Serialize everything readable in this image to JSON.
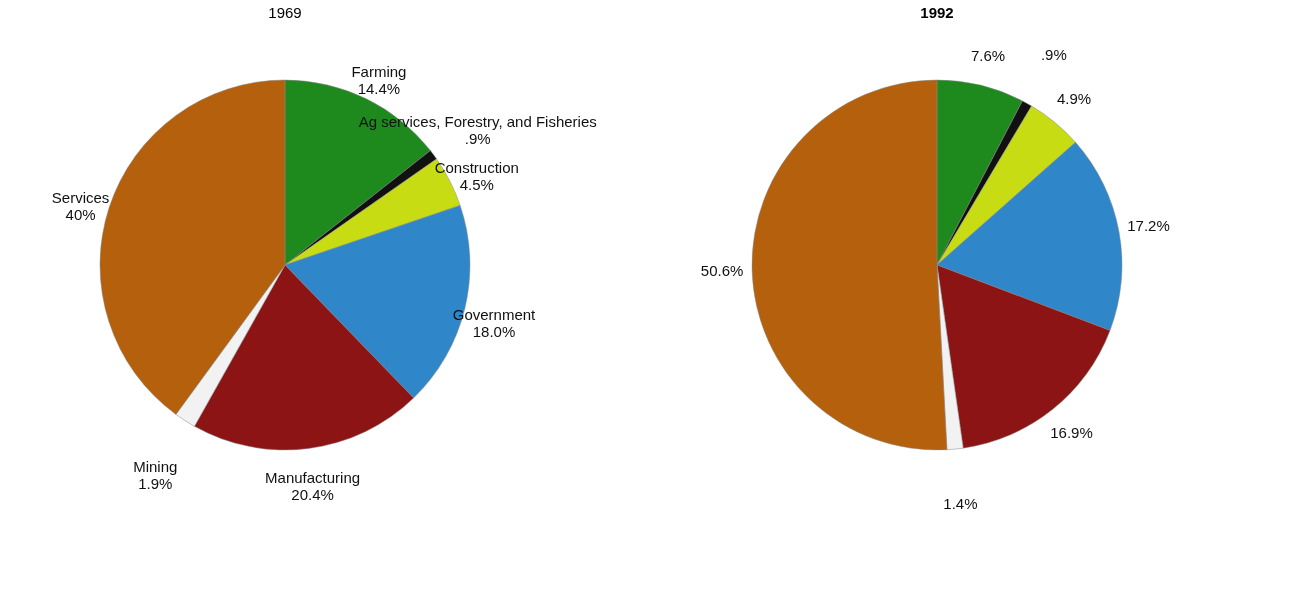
{
  "chart_data": [
    {
      "type": "pie",
      "title": "1969",
      "categories": [
        "Farming",
        "Ag services, Forestry, and Fisheries",
        "Construction",
        "Government",
        "Manufacturing",
        "Mining",
        "Services"
      ],
      "values": [
        14.4,
        0.9,
        4.5,
        18.0,
        20.4,
        1.9,
        40
      ],
      "value_labels": [
        "14.4%",
        ".9%",
        "4.5%",
        "18.0%",
        "20.4%",
        "1.9%",
        "40%"
      ],
      "colors": [
        "#1e8a1e",
        "#111111",
        "#c8dc14",
        "#2f86c8",
        "#8c1414",
        "#f2f2f2",
        "#b4600c"
      ]
    },
    {
      "type": "pie",
      "title": "1992",
      "categories": [
        null,
        null,
        null,
        null,
        null,
        null,
        null
      ],
      "values": [
        7.6,
        0.9,
        4.9,
        17.2,
        16.9,
        1.4,
        50.6
      ],
      "value_labels": [
        "7.6%",
        ".9%",
        "4.9%",
        "17.2%",
        "16.9%",
        "1.4%",
        "50.6%"
      ],
      "colors": [
        "#1e8a1e",
        "#111111",
        "#c8dc14",
        "#2f86c8",
        "#8c1414",
        "#f2f2f2",
        "#b4600c"
      ]
    }
  ]
}
